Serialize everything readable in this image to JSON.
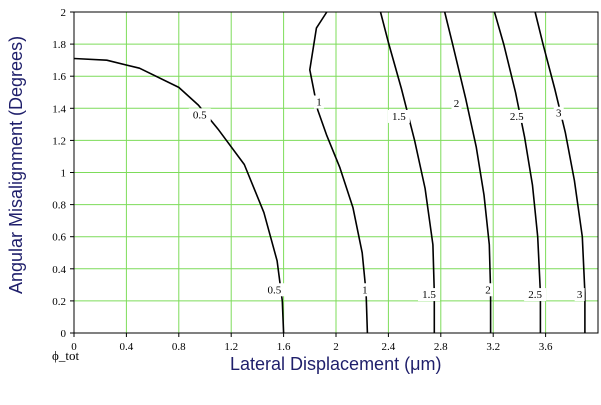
{
  "chart_data": {
    "type": "contour",
    "xlabel": "Lateral Displacement (μm)",
    "ylabel": "Angular Misalignment (Degrees)",
    "caption": "ϕ_tot",
    "xlim": [
      0,
      4.0
    ],
    "ylim": [
      0,
      2
    ],
    "x_ticks": [
      "0",
      "0.4",
      "0.8",
      "1.2",
      "1.6",
      "2",
      "2.4",
      "2.8",
      "3.2",
      "3.6"
    ],
    "x_tick_values": [
      0,
      0.4,
      0.8,
      1.2,
      1.6,
      2.0,
      2.4,
      2.8,
      3.2,
      3.6
    ],
    "y_ticks": [
      "0",
      "0.2",
      "0.4",
      "0.6",
      "0.8",
      "1",
      "1.2",
      "1.4",
      "1.6",
      "1.8",
      "2"
    ],
    "y_tick_values": [
      0,
      0.2,
      0.4,
      0.6,
      0.8,
      1.0,
      1.2,
      1.4,
      1.6,
      1.8,
      2.0
    ],
    "grid": true,
    "grid_color": "#7ddc5a",
    "line_color": "#000000",
    "contours": [
      {
        "level_label": "0.5",
        "points": [
          [
            0,
            1.71
          ],
          [
            0.25,
            1.7
          ],
          [
            0.5,
            1.65
          ],
          [
            0.8,
            1.53
          ],
          [
            0.95,
            1.42
          ],
          [
            1.1,
            1.27
          ],
          [
            1.3,
            1.05
          ],
          [
            1.45,
            0.75
          ],
          [
            1.55,
            0.45
          ],
          [
            1.59,
            0.2
          ],
          [
            1.6,
            0.0
          ]
        ],
        "labels": [
          {
            "text": "0.5",
            "x": 0.96,
            "y": 1.35
          },
          {
            "text": "0.5",
            "x": 1.53,
            "y": 0.26
          }
        ]
      },
      {
        "level_label": "1",
        "points": [
          [
            1.93,
            2.0
          ],
          [
            1.85,
            1.9
          ],
          [
            1.8,
            1.64
          ],
          [
            1.86,
            1.39
          ],
          [
            1.93,
            1.23
          ],
          [
            2.03,
            1.03
          ],
          [
            2.13,
            0.78
          ],
          [
            2.2,
            0.5
          ],
          [
            2.23,
            0.25
          ],
          [
            2.24,
            0.0
          ]
        ],
        "labels": [
          {
            "text": "1",
            "x": 1.87,
            "y": 1.43
          },
          {
            "text": "1",
            "x": 2.22,
            "y": 0.26
          }
        ]
      },
      {
        "level_label": "1.5",
        "points": [
          [
            2.34,
            2.0
          ],
          [
            2.4,
            1.81
          ],
          [
            2.5,
            1.52
          ],
          [
            2.6,
            1.2
          ],
          [
            2.68,
            0.9
          ],
          [
            2.74,
            0.55
          ],
          [
            2.75,
            0.25
          ],
          [
            2.75,
            0.0
          ]
        ],
        "labels": [
          {
            "text": "1.5",
            "x": 2.48,
            "y": 1.34
          },
          {
            "text": "1.5",
            "x": 2.71,
            "y": 0.23
          }
        ]
      },
      {
        "level_label": "2",
        "points": [
          [
            2.83,
            2.0
          ],
          [
            2.89,
            1.8
          ],
          [
            2.99,
            1.46
          ],
          [
            3.07,
            1.16
          ],
          [
            3.13,
            0.86
          ],
          [
            3.17,
            0.55
          ],
          [
            3.18,
            0.26
          ],
          [
            3.18,
            0.0
          ]
        ],
        "labels": [
          {
            "text": "2",
            "x": 2.92,
            "y": 1.42
          },
          {
            "text": "2",
            "x": 3.16,
            "y": 0.26
          }
        ]
      },
      {
        "level_label": "2.5",
        "points": [
          [
            3.21,
            2.0
          ],
          [
            3.28,
            1.8
          ],
          [
            3.37,
            1.5
          ],
          [
            3.44,
            1.22
          ],
          [
            3.5,
            0.92
          ],
          [
            3.54,
            0.6
          ],
          [
            3.56,
            0.25
          ],
          [
            3.56,
            0.0
          ]
        ],
        "labels": [
          {
            "text": "2.5",
            "x": 3.38,
            "y": 1.34
          },
          {
            "text": "2.5",
            "x": 3.52,
            "y": 0.23
          }
        ]
      },
      {
        "level_label": "3",
        "points": [
          [
            3.52,
            2.0
          ],
          [
            3.58,
            1.8
          ],
          [
            3.67,
            1.52
          ],
          [
            3.75,
            1.25
          ],
          [
            3.82,
            0.95
          ],
          [
            3.88,
            0.6
          ],
          [
            3.9,
            0.25
          ],
          [
            3.9,
            0.0
          ]
        ],
        "labels": [
          {
            "text": "3",
            "x": 3.7,
            "y": 1.36
          },
          {
            "text": "3",
            "x": 3.86,
            "y": 0.23
          }
        ]
      }
    ]
  }
}
